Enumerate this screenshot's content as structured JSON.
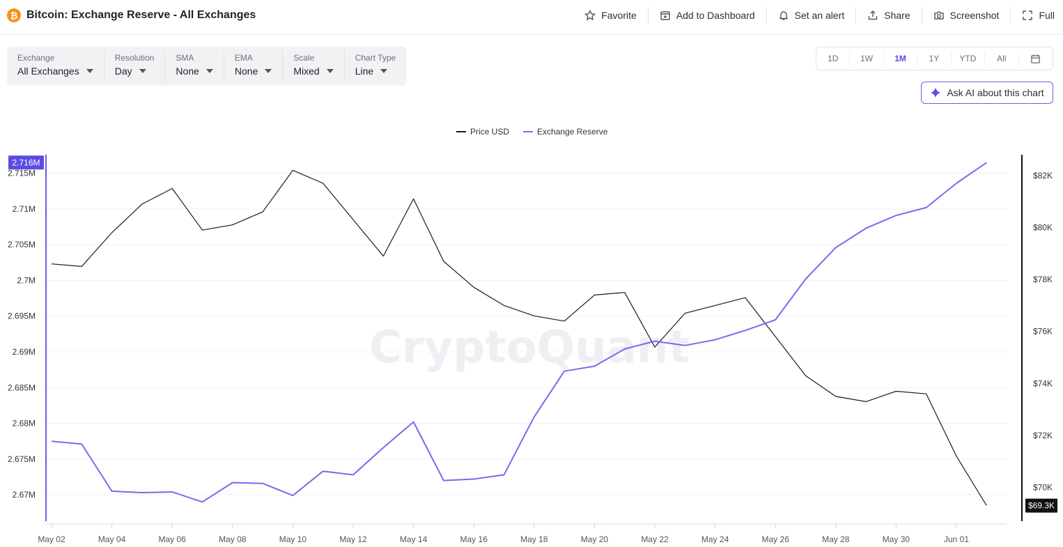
{
  "header": {
    "title": "Bitcoin: Exchange Reserve - All Exchanges",
    "actions": [
      {
        "label": "Favorite",
        "icon": "star-icon"
      },
      {
        "label": "Add to Dashboard",
        "icon": "add-dashboard-icon"
      },
      {
        "label": "Set an alert",
        "icon": "bell-icon"
      },
      {
        "label": "Share",
        "icon": "share-icon"
      },
      {
        "label": "Screenshot",
        "icon": "camera-icon"
      },
      {
        "label": "Full",
        "icon": "fullscreen-icon"
      }
    ]
  },
  "controls": [
    {
      "label": "Exchange",
      "value": "All Exchanges"
    },
    {
      "label": "Resolution",
      "value": "Day"
    },
    {
      "label": "SMA",
      "value": "None"
    },
    {
      "label": "EMA",
      "value": "None"
    },
    {
      "label": "Scale",
      "value": "Mixed"
    },
    {
      "label": "Chart Type",
      "value": "Line"
    }
  ],
  "ranges": [
    "1D",
    "1W",
    "1M",
    "1Y",
    "YTD",
    "All"
  ],
  "active_range": "1M",
  "ask_ai": "Ask AI about this chart",
  "watermark": "CryptoQuant",
  "colors": {
    "price": "#1a1a1a",
    "reserve": "#7b68ee",
    "accent": "#5b4de0"
  },
  "chart_data": {
    "type": "line",
    "x": [
      "May 02",
      "May 03",
      "May 04",
      "May 05",
      "May 06",
      "May 07",
      "May 08",
      "May 09",
      "May 10",
      "May 11",
      "May 12",
      "May 13",
      "May 14",
      "May 15",
      "May 16",
      "May 17",
      "May 18",
      "May 19",
      "May 20",
      "May 21",
      "May 22",
      "May 23",
      "May 24",
      "May 25",
      "May 26",
      "May 27",
      "May 28",
      "May 29",
      "May 30",
      "May 31",
      "Jun 01",
      "Jun 02"
    ],
    "x_tick_labels": [
      "May 02",
      "May 04",
      "May 06",
      "May 08",
      "May 10",
      "May 12",
      "May 14",
      "May 16",
      "May 18",
      "May 20",
      "May 22",
      "May 24",
      "May 26",
      "May 28",
      "May 30",
      "Jun 01"
    ],
    "series": [
      {
        "name": "Price USD",
        "axis": "right",
        "values": [
          78600,
          78500,
          79800,
          80900,
          81500,
          79900,
          80100,
          80600,
          82200,
          81700,
          80300,
          78900,
          81100,
          78700,
          77700,
          77000,
          76600,
          76400,
          77400,
          77500,
          75400,
          76700,
          77000,
          77300,
          75800,
          74300,
          73500,
          73300,
          73700,
          73600,
          71200,
          69300
        ]
      },
      {
        "name": "Exchange Reserve",
        "axis": "left",
        "values": [
          2.6775,
          2.6771,
          2.6705,
          2.6703,
          2.6704,
          2.669,
          2.6717,
          2.6716,
          2.6699,
          2.6733,
          2.6728,
          2.6766,
          2.6802,
          2.672,
          2.6722,
          2.6728,
          2.6809,
          2.6873,
          2.688,
          2.6904,
          2.6915,
          2.6909,
          2.6917,
          2.693,
          2.6945,
          2.7002,
          2.7046,
          2.7073,
          2.7091,
          2.7102,
          2.7136,
          2.7165
        ]
      }
    ],
    "left_axis": {
      "ticks": [
        2.67,
        2.675,
        2.68,
        2.685,
        2.69,
        2.695,
        2.7,
        2.705,
        2.71,
        2.715
      ],
      "tick_labels": [
        "2.67M",
        "2.675M",
        "2.68M",
        "2.685M",
        "2.69M",
        "2.695M",
        "2.7M",
        "2.705M",
        "2.71M",
        "2.715M"
      ],
      "range": [
        2.6663,
        2.7176
      ]
    },
    "right_axis": {
      "ticks": [
        70000,
        72000,
        74000,
        76000,
        78000,
        80000,
        82000
      ],
      "tick_labels": [
        "$70K",
        "$72K",
        "$74K",
        "$76K",
        "$78K",
        "$80K",
        "$82K"
      ],
      "range": [
        68700,
        82800
      ]
    },
    "last_value_labels": {
      "left": "2.716M",
      "right": "$69.3K"
    },
    "grid": true,
    "legend": "top-center"
  }
}
